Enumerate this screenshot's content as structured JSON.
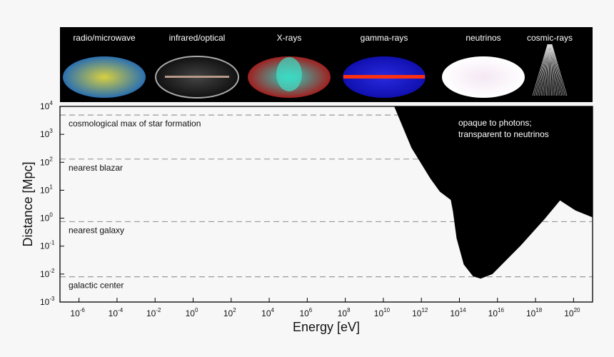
{
  "banner": {
    "background": "#000000",
    "panels": [
      {
        "label": "radio/microwave",
        "icon": "cmb-sky-map"
      },
      {
        "label": "infrared/optical",
        "icon": "milky-way-sky-map"
      },
      {
        "label": "X-rays",
        "icon": "xray-sky-map"
      },
      {
        "label": "gamma-rays",
        "icon": "gamma-ray-sky-map"
      },
      {
        "label": "neutrinos",
        "icon": "neutrino-sky-map"
      },
      {
        "label": "cosmic-rays",
        "icon": "cosmic-ray-shower"
      }
    ]
  },
  "chart_data": {
    "type": "area",
    "xlabel": "Energy [eV]",
    "ylabel": "Distance [Mpc]",
    "xscale": "log",
    "yscale": "log",
    "xlim": [
      1e-07,
      1e+21
    ],
    "ylim": [
      0.001,
      10000.0
    ],
    "x_tick_exponents": [
      -6,
      -4,
      -2,
      0,
      2,
      4,
      6,
      8,
      10,
      12,
      14,
      16,
      18,
      20
    ],
    "y_tick_exponents": [
      -3,
      -2,
      -1,
      0,
      1,
      2,
      3,
      4
    ],
    "tick_base": "10",
    "grid": false,
    "reference_lines": [
      {
        "label": "cosmological max of star formation",
        "y": 4900
      },
      {
        "label": "nearest blazar",
        "y": 130
      },
      {
        "label": "nearest galaxy",
        "y": 0.75
      },
      {
        "label": "galactic center",
        "y": 0.008
      }
    ],
    "opaque_region": {
      "label_line1": "opaque to photons;",
      "label_line2": "transparent to neutrinos",
      "color": "#000000",
      "boundary": [
        {
          "x": 37000000000.0,
          "y": 10000.0
        },
        {
          "x": 300000000000.0,
          "y": 330
        },
        {
          "x": 3000000000000.0,
          "y": 26
        },
        {
          "x": 9300000000000.0,
          "y": 8.9
        },
        {
          "x": 35000000000000.0,
          "y": 4.5
        },
        {
          "x": 46000000000000.0,
          "y": 1.7
        },
        {
          "x": 71000000000000.0,
          "y": 0.19
        },
        {
          "x": 170000000000000.0,
          "y": 0.022
        },
        {
          "x": 520000000000000.0,
          "y": 0.0083
        },
        {
          "x": 1300000000000000.0,
          "y": 0.0069
        },
        {
          "x": 5400000000000000.0,
          "y": 0.01
        },
        {
          "x": 1.7e+17,
          "y": 0.107
        },
        {
          "x": 3e+18,
          "y": 0.93
        },
        {
          "x": 1.95e+19,
          "y": 4.3
        },
        {
          "x": 1.26e+20,
          "y": 1.9
        },
        {
          "x": 9.1e+20,
          "y": 1.1
        }
      ]
    }
  }
}
